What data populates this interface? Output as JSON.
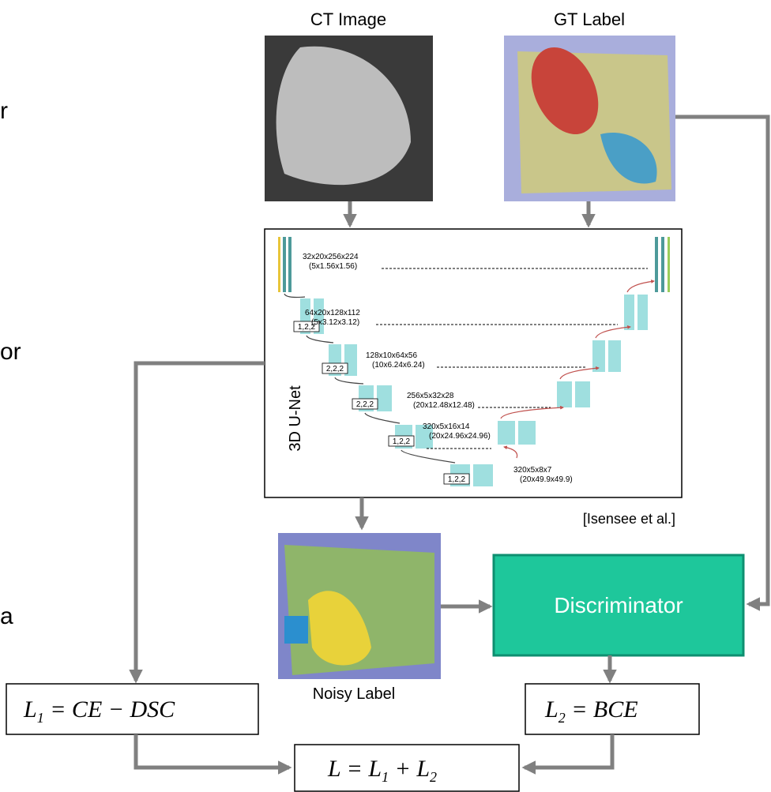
{
  "side_fragments": [
    "r",
    "or",
    "a"
  ],
  "ct": {
    "label": "CT Image"
  },
  "gt": {
    "label": "GT Label"
  },
  "unet": {
    "title": "3D U-Net",
    "citation": "[Isensee et al.]",
    "levels": [
      {
        "shape": "32x20x256x224",
        "spacing": "(5x1.56x1.56)"
      },
      {
        "shape": "64x20x128x112",
        "spacing": "(5x3.12x3.12)",
        "stride": "1,2,2"
      },
      {
        "shape": "128x10x64x56",
        "spacing": "(10x6.24x6.24)",
        "stride": "2,2,2"
      },
      {
        "shape": "256x5x32x28",
        "spacing": "(20x12.48x12.48)",
        "stride": "2,2,2"
      },
      {
        "shape": "320x5x16x14",
        "spacing": "(20x24.96x24.96)",
        "stride": "1,2,2"
      },
      {
        "shape": "320x5x8x7",
        "spacing": "(20x49.9x49.9)",
        "stride": "1,2,2"
      }
    ]
  },
  "noisy": {
    "label": "Noisy Label"
  },
  "discriminator": {
    "label": "Discriminator"
  },
  "losses": {
    "l1": {
      "base": "L",
      "sub": "1",
      "rest": " = CE  − DSC"
    },
    "l2": {
      "base": "L",
      "sub": "2",
      "rest": " = BCE"
    },
    "total": {
      "base": "L",
      "rest1": " = L",
      "sub1": "1",
      "mid": " + L",
      "sub2": "2"
    }
  }
}
